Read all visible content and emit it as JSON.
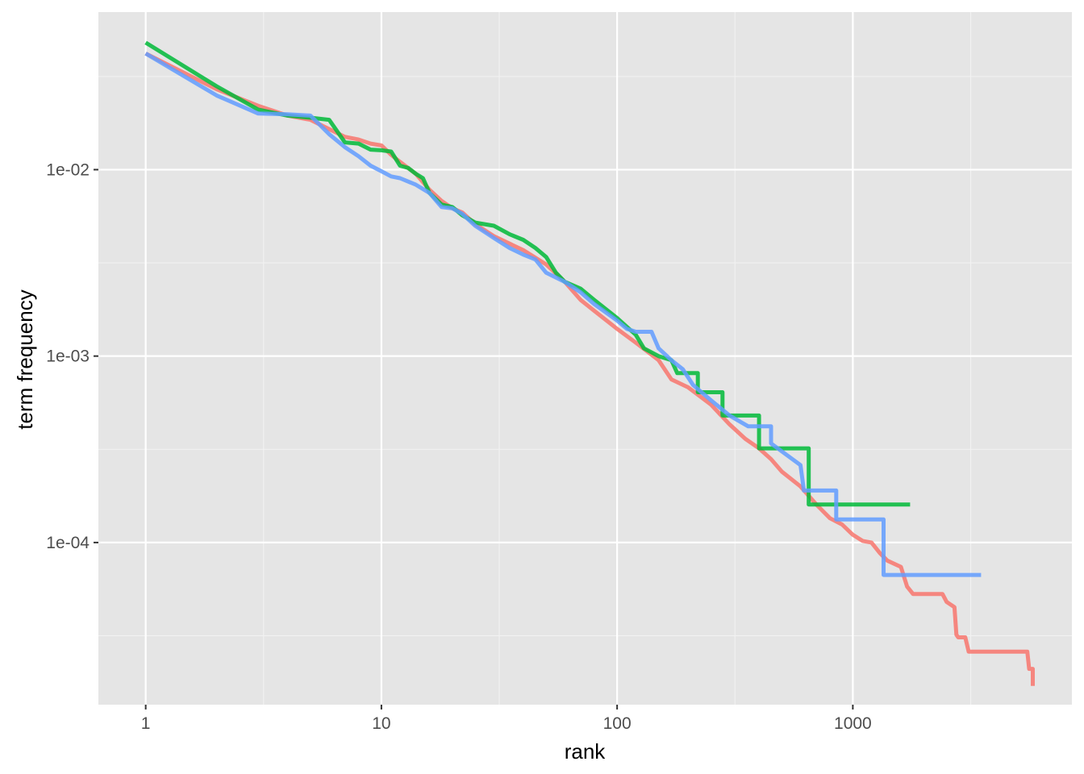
{
  "chart_data": {
    "type": "line",
    "xlabel": "rank",
    "ylabel": "term frequency",
    "x_scale": "log10",
    "y_scale": "log10",
    "xlim": [
      0.63,
      8500
    ],
    "ylim": [
      1.35e-05,
      0.07
    ],
    "x_ticks": [
      {
        "value": 1,
        "label": "1"
      },
      {
        "value": 10,
        "label": "10"
      },
      {
        "value": 100,
        "label": "100"
      },
      {
        "value": 1000,
        "label": "1000"
      }
    ],
    "y_ticks": [
      {
        "value": 0.01,
        "label": "1e-02"
      },
      {
        "value": 0.001,
        "label": "1e-03"
      },
      {
        "value": 0.0001,
        "label": "1e-04"
      }
    ],
    "x_minor": [
      3.162,
      31.62,
      316.2,
      3162
    ],
    "y_minor": [
      0.0316,
      0.00316,
      0.000316,
      3.16e-05
    ],
    "grid": true,
    "legend": "none",
    "background": "#e5e5e5",
    "series": [
      {
        "color": "#f8766d",
        "points": [
          [
            1,
            0.042
          ],
          [
            2,
            0.027
          ],
          [
            3,
            0.022
          ],
          [
            4,
            0.0195
          ],
          [
            5,
            0.0185
          ],
          [
            6,
            0.0165
          ],
          [
            7,
            0.015
          ],
          [
            8,
            0.0145
          ],
          [
            9,
            0.0138
          ],
          [
            10,
            0.0135
          ],
          [
            11,
            0.012
          ],
          [
            12,
            0.011
          ],
          [
            14,
            0.0095
          ],
          [
            16,
            0.0078
          ],
          [
            18,
            0.0068
          ],
          [
            20,
            0.0062
          ],
          [
            22,
            0.0059
          ],
          [
            25,
            0.0051
          ],
          [
            30,
            0.0044
          ],
          [
            40,
            0.0037
          ],
          [
            50,
            0.0031
          ],
          [
            60,
            0.0025
          ],
          [
            70,
            0.002
          ],
          [
            80,
            0.00175
          ],
          [
            100,
            0.0014
          ],
          [
            120,
            0.00118
          ],
          [
            150,
            0.00095
          ],
          [
            170,
            0.00075
          ],
          [
            200,
            0.00068
          ],
          [
            250,
            0.00055
          ],
          [
            300,
            0.00043
          ],
          [
            350,
            0.00036
          ],
          [
            400,
            0.00032
          ],
          [
            450,
            0.00028
          ],
          [
            500,
            0.00024
          ],
          [
            600,
            0.0002
          ],
          [
            700,
            0.00016
          ],
          [
            800,
            0.000135
          ],
          [
            900,
            0.000125
          ],
          [
            1000,
            0.00011
          ],
          [
            1100,
            0.000102
          ],
          [
            1200,
            0.0001
          ],
          [
            1300,
            8.8e-05
          ],
          [
            1400,
            8e-05
          ],
          [
            1600,
            7.4e-05
          ],
          [
            1700,
            5.8e-05
          ],
          [
            1800,
            5.3e-05
          ],
          [
            2000,
            5.3e-05
          ],
          [
            2400,
            5.3e-05
          ],
          [
            2500,
            4.8e-05
          ],
          [
            2700,
            4.5e-05
          ],
          [
            2750,
            3.2e-05
          ],
          [
            2800,
            3.1e-05
          ],
          [
            3000,
            3.1e-05
          ],
          [
            3100,
            2.6e-05
          ],
          [
            5500,
            2.6e-05
          ],
          [
            5600,
            2.1e-05
          ],
          [
            5800,
            2.1e-05
          ],
          [
            5800,
            1.7e-05
          ]
        ]
      },
      {
        "color": "#00ba38",
        "points": [
          [
            1,
            0.048
          ],
          [
            2,
            0.028
          ],
          [
            3,
            0.021
          ],
          [
            4,
            0.0195
          ],
          [
            5,
            0.019
          ],
          [
            6,
            0.0185
          ],
          [
            7,
            0.014
          ],
          [
            8,
            0.0138
          ],
          [
            9,
            0.0128
          ],
          [
            10,
            0.0127
          ],
          [
            11,
            0.0125
          ],
          [
            12,
            0.0105
          ],
          [
            13,
            0.0102
          ],
          [
            14,
            0.0095
          ],
          [
            15,
            0.009
          ],
          [
            16,
            0.0075
          ],
          [
            18,
            0.0065
          ],
          [
            20,
            0.0063
          ],
          [
            22,
            0.0057
          ],
          [
            25,
            0.0052
          ],
          [
            30,
            0.005
          ],
          [
            35,
            0.0045
          ],
          [
            40,
            0.0042
          ],
          [
            45,
            0.0038
          ],
          [
            50,
            0.0034
          ],
          [
            55,
            0.0028
          ],
          [
            60,
            0.0025
          ],
          [
            70,
            0.0023
          ],
          [
            80,
            0.002
          ],
          [
            100,
            0.0016
          ],
          [
            120,
            0.0013
          ],
          [
            130,
            0.0011
          ],
          [
            150,
            0.001
          ],
          [
            170,
            0.00095
          ],
          [
            180,
            0.00081
          ],
          [
            220,
            0.00081
          ],
          [
            220,
            0.00064
          ],
          [
            280,
            0.00064
          ],
          [
            280,
            0.00048
          ],
          [
            400,
            0.00048
          ],
          [
            400,
            0.00032
          ],
          [
            650,
            0.00032
          ],
          [
            650,
            0.00016
          ],
          [
            1750,
            0.00016
          ]
        ]
      },
      {
        "color": "#619cff",
        "points": [
          [
            1,
            0.042
          ],
          [
            2,
            0.025
          ],
          [
            3,
            0.02
          ],
          [
            4,
            0.0198
          ],
          [
            5,
            0.0195
          ],
          [
            6,
            0.0155
          ],
          [
            7,
            0.0132
          ],
          [
            8,
            0.0118
          ],
          [
            9,
            0.0105
          ],
          [
            10,
            0.0098
          ],
          [
            11,
            0.0092
          ],
          [
            12,
            0.009
          ],
          [
            14,
            0.0083
          ],
          [
            16,
            0.0075
          ],
          [
            18,
            0.0063
          ],
          [
            20,
            0.0062
          ],
          [
            22,
            0.0058
          ],
          [
            25,
            0.005
          ],
          [
            30,
            0.0043
          ],
          [
            35,
            0.0038
          ],
          [
            40,
            0.0035
          ],
          [
            45,
            0.0033
          ],
          [
            50,
            0.0028
          ],
          [
            60,
            0.0025
          ],
          [
            70,
            0.0022
          ],
          [
            80,
            0.0019
          ],
          [
            100,
            0.00155
          ],
          [
            110,
            0.0014
          ],
          [
            120,
            0.00135
          ],
          [
            140,
            0.00135
          ],
          [
            150,
            0.0011
          ],
          [
            170,
            0.00095
          ],
          [
            190,
            0.00085
          ],
          [
            210,
            0.0007
          ],
          [
            250,
            0.00058
          ],
          [
            300,
            0.00048
          ],
          [
            360,
            0.00042
          ],
          [
            450,
            0.00042
          ],
          [
            450,
            0.00034
          ],
          [
            600,
            0.00026
          ],
          [
            620,
            0.00019
          ],
          [
            850,
            0.00019
          ],
          [
            850,
            0.000133
          ],
          [
            1350,
            0.000133
          ],
          [
            1350,
            6.7e-05
          ],
          [
            3500,
            6.7e-05
          ]
        ]
      }
    ]
  }
}
